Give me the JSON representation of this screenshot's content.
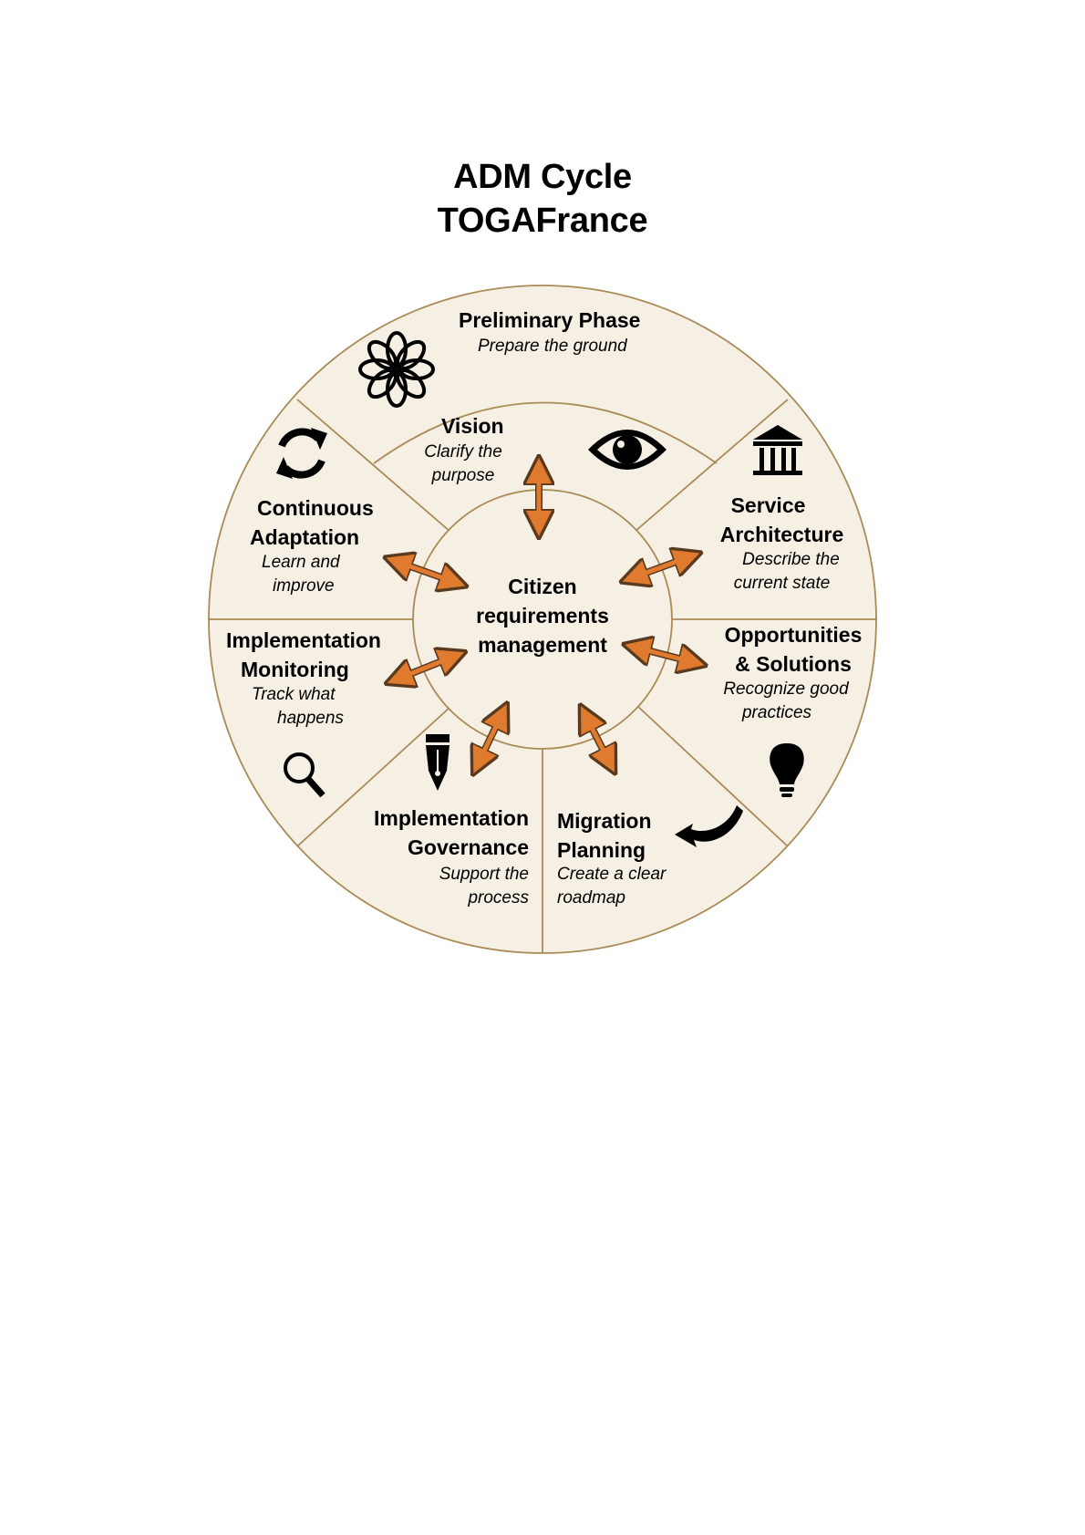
{
  "title": {
    "line1": "ADM Cycle",
    "line2": "TOGAFrance"
  },
  "colors": {
    "fill": "#f6efe3",
    "stroke": "#a88b55",
    "arrow": "#e07a2e",
    "arrow_outline": "#5a3a1e"
  },
  "center": {
    "line1": "Citizen",
    "line2": "requirements",
    "line3": "management"
  },
  "phases": {
    "preliminary": {
      "title": "Preliminary Phase",
      "subtitle": "Prepare the ground",
      "icon": "flower-icon"
    },
    "vision": {
      "title": "Vision",
      "subtitle_line1": "Clarify the",
      "subtitle_line2": "purpose",
      "icon": "eye-icon"
    },
    "service": {
      "title_line1": "Service",
      "title_line2": "Architecture",
      "subtitle_line1": "Describe the",
      "subtitle_line2": "current state",
      "icon": "columns-building-icon"
    },
    "opportunities": {
      "title_line1": "Opportunities",
      "title_line2": "& Solutions",
      "subtitle_line1": "Recognize good",
      "subtitle_line2": "practices",
      "icon": "lightbulb-icon"
    },
    "migration": {
      "title_line1": "Migration",
      "title_line2": "Planning",
      "subtitle_line1": "Create a clear",
      "subtitle_line2": "roadmap",
      "icon": "curved-arrow-icon"
    },
    "governance": {
      "title_line1": "Implementation",
      "title_line2": "Governance",
      "subtitle_line1": "Support the",
      "subtitle_line2": "process",
      "icon": "fountain-pen-icon"
    },
    "monitoring": {
      "title_line1": "Implementation",
      "title_line2": "Monitoring",
      "subtitle_line1": "Track what",
      "subtitle_line2": "happens",
      "icon": "magnifier-icon"
    },
    "adaptation": {
      "title_line1": "Continuous",
      "title_line2": "Adaptation",
      "subtitle_line1": "Learn and",
      "subtitle_line2": "improve",
      "icon": "refresh-cycle-icon"
    }
  }
}
